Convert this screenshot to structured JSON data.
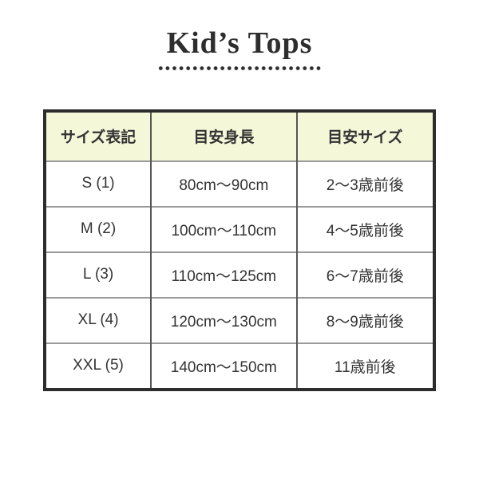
{
  "page": {
    "title": "Kid’s Tops"
  },
  "colors": {
    "background": "#ffffff",
    "title_text": "#2e2e2e",
    "underline_dots": "#2e2e2e",
    "table_outer_border": "#2d2d2d",
    "table_vertical_border": "#565656",
    "table_horizontal_border": "#9a9a9a",
    "header_background": "#f5f7d9",
    "cell_text": "#333333"
  },
  "size_table": {
    "columns": [
      "サイズ表記",
      "目安身長",
      "目安サイズ"
    ],
    "rows": [
      {
        "size_label": "S (1)",
        "height_range": "80cm〜90cm",
        "age_range": "2〜3歳前後"
      },
      {
        "size_label": "M (2)",
        "height_range": "100cm〜110cm",
        "age_range": "4〜5歳前後"
      },
      {
        "size_label": "L (3)",
        "height_range": "110cm〜125cm",
        "age_range": "6〜7歳前後"
      },
      {
        "size_label": "XL (4)",
        "height_range": "120cm〜130cm",
        "age_range": "8〜9歳前後"
      },
      {
        "size_label": "XXL (5)",
        "height_range": "140cm〜150cm",
        "age_range": "11歳前後"
      }
    ]
  }
}
